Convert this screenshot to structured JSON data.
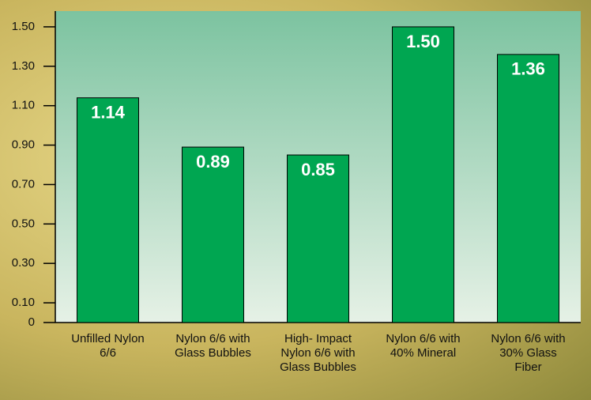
{
  "chart_data": {
    "type": "bar",
    "categories": [
      "Unfilled Nylon 6/6",
      "Nylon 6/6 with Glass Bubbles",
      "High- Impact Nylon 6/6 with Glass Bubbles",
      "Nylon 6/6 with 40% Mineral",
      "Nylon 6/6 with 30% Glass Fiber"
    ],
    "values": [
      1.14,
      0.89,
      0.85,
      1.5,
      1.36
    ],
    "value_labels": [
      "1.14",
      "0.89",
      "0.85",
      "1.50",
      "1.36"
    ],
    "color": "#00a651",
    "ylim": [
      0,
      1.58
    ],
    "yticks": [
      0,
      {
        "value": 0.1,
        "label": "0.10"
      },
      {
        "value": 0.3,
        "label": "0.30"
      },
      {
        "value": 0.5,
        "label": "0.50"
      },
      {
        "value": 0.7,
        "label": "0.70"
      },
      {
        "value": 0.9,
        "label": "0.90"
      },
      {
        "value": 1.1,
        "label": "1.10"
      },
      {
        "value": 1.3,
        "label": "1.30"
      },
      {
        "value": 1.5,
        "label": "1.50"
      }
    ],
    "grid": false
  }
}
